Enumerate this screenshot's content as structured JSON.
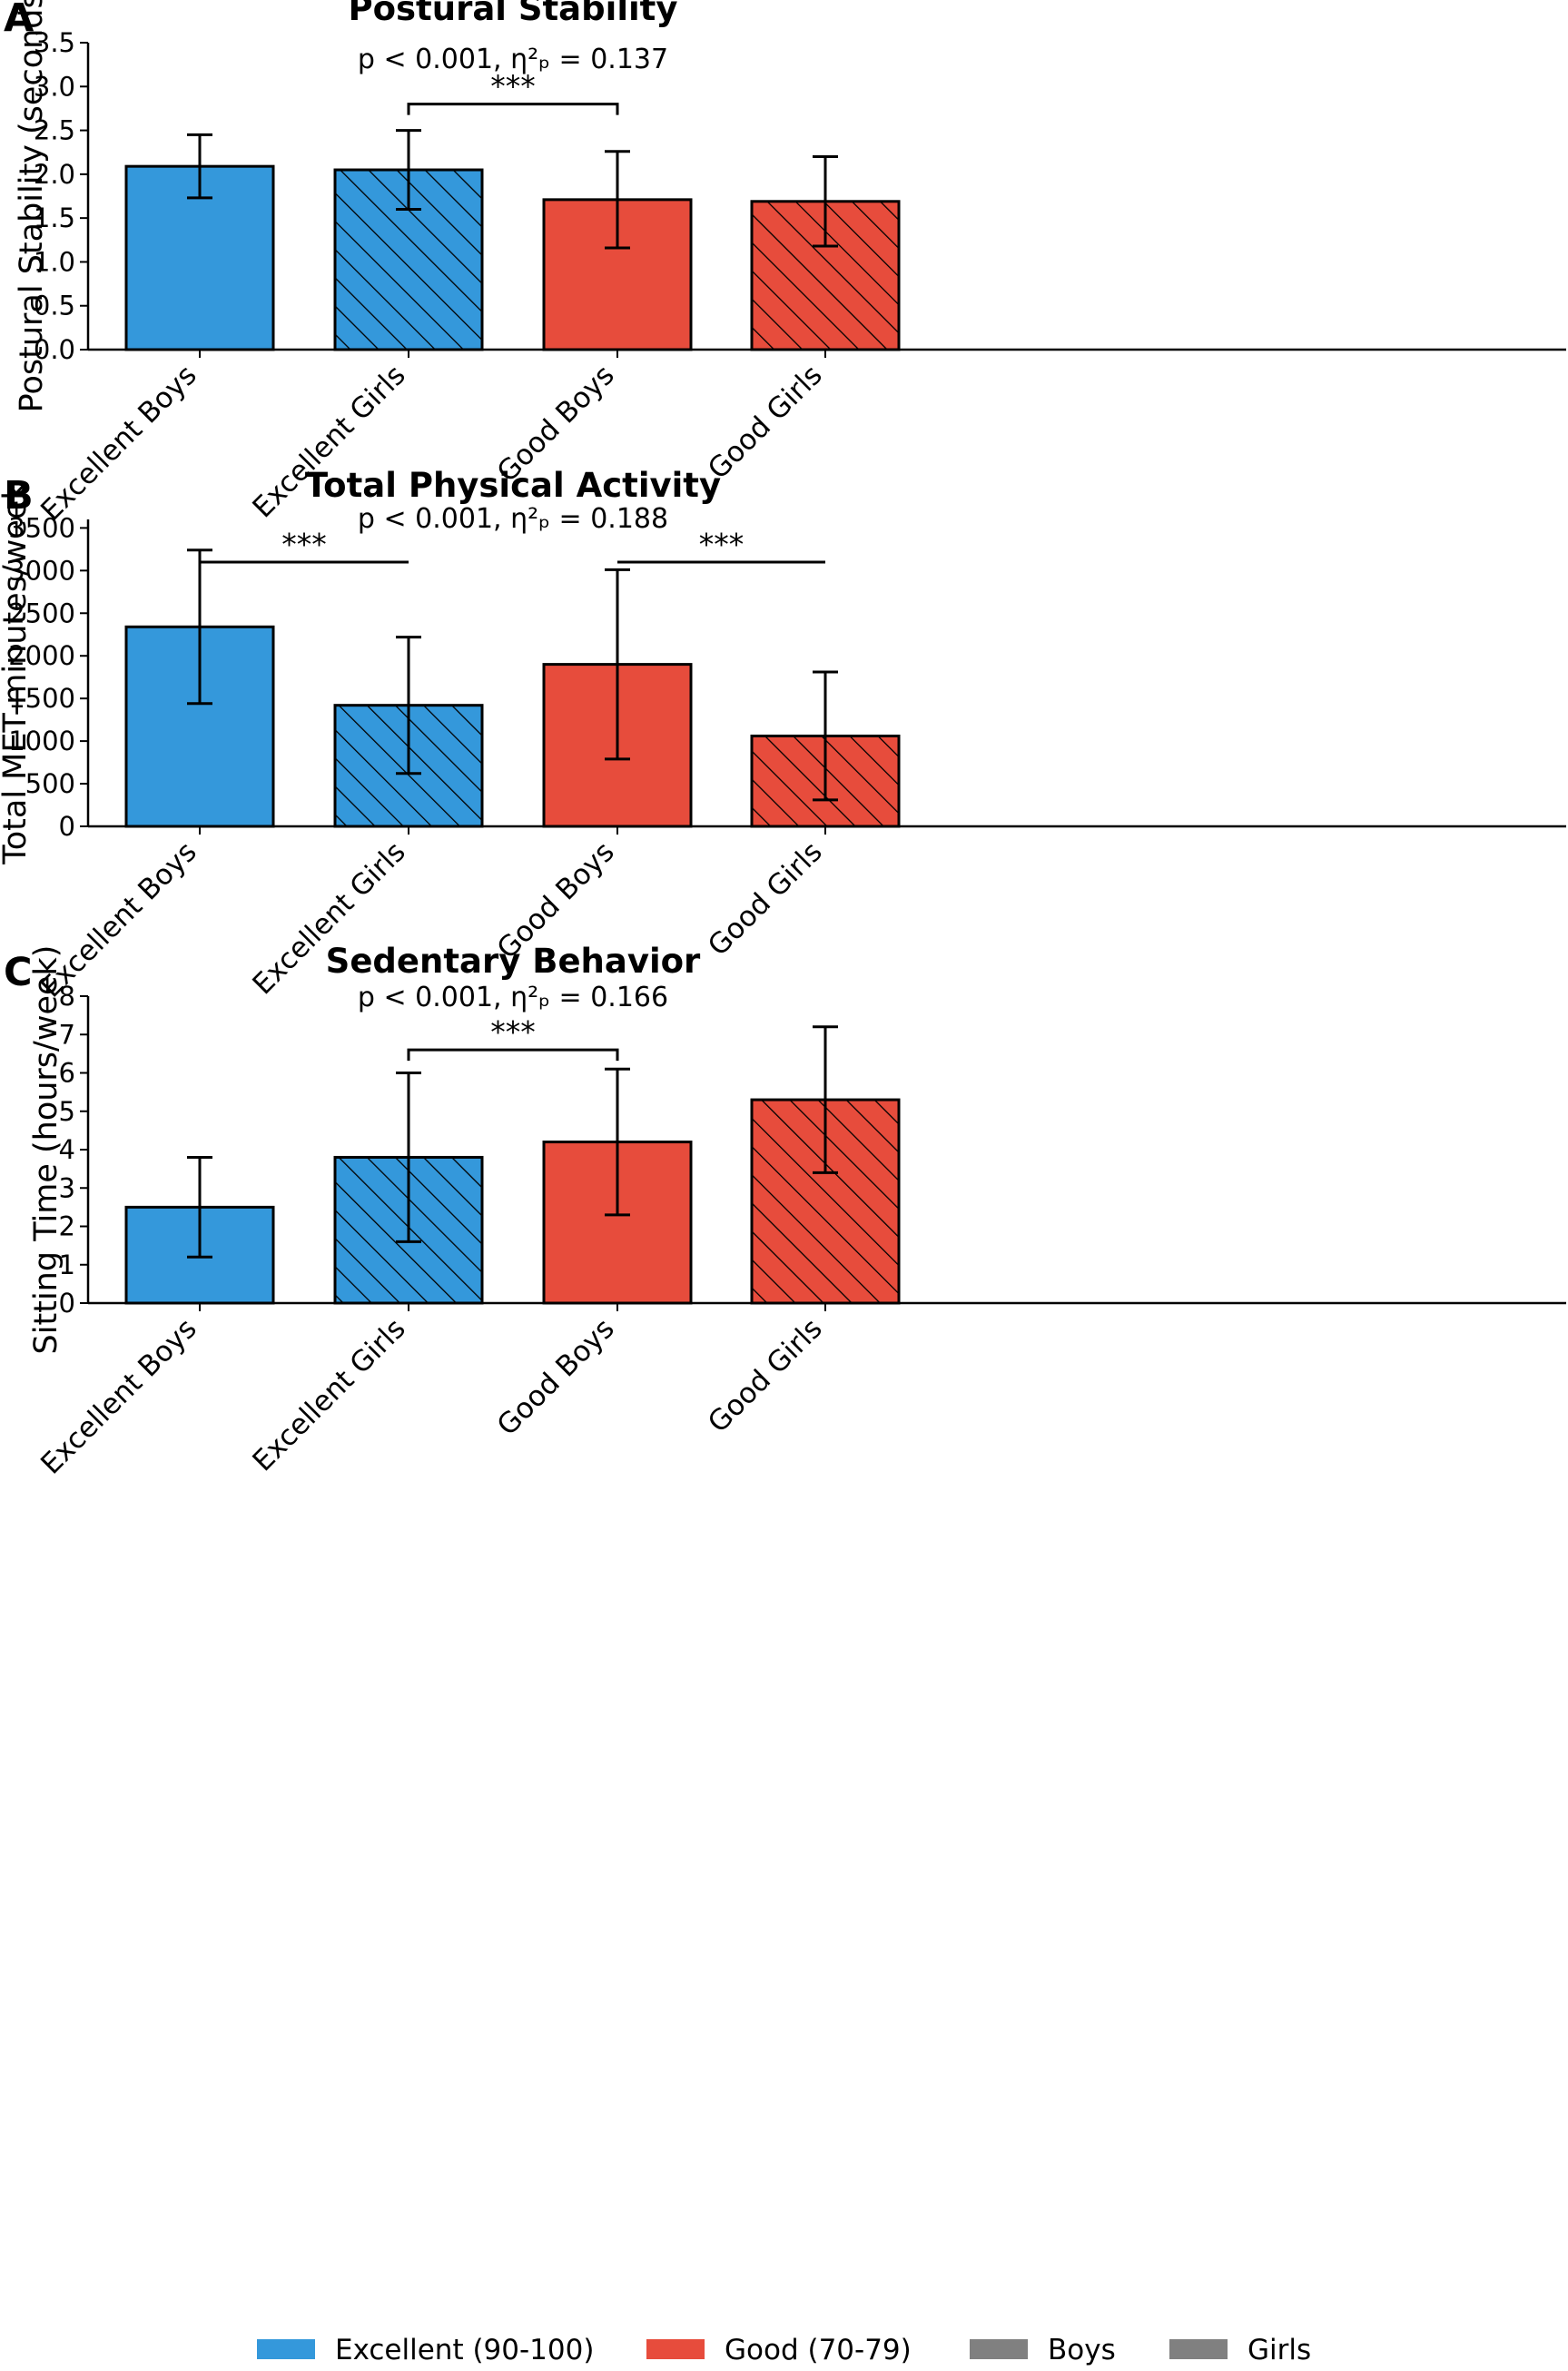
{
  "colors": {
    "excellent": "#3498db",
    "good": "#e74c3c",
    "neutral": "#808080",
    "edge": "#000000"
  },
  "chart_data": [
    {
      "type": "bar",
      "panel": "A",
      "title": "Postural Stability",
      "xlabel": "",
      "ylabel": "Postural Stability (seconds)",
      "ylim": [
        0,
        3.5
      ],
      "yticks": [
        0.0,
        0.5,
        1.0,
        1.5,
        2.0,
        2.5,
        3.0,
        3.5
      ],
      "ytick_labels": [
        "0.0",
        "0.5",
        "1.0",
        "1.5",
        "2.0",
        "2.5",
        "3.0",
        "3.5"
      ],
      "categories": [
        "Excellent Boys",
        "Excellent Girls",
        "Good Boys",
        "Good Girls"
      ],
      "values": [
        2.09,
        2.05,
        1.71,
        1.69
      ],
      "errors": [
        0.36,
        0.45,
        0.55,
        0.51
      ],
      "stat_text": "p < 0.001, η²ₚ = 0.137",
      "brackets": [
        {
          "from": 1,
          "to": 2,
          "y": 2.8,
          "label": "***",
          "style": "bracket"
        }
      ]
    },
    {
      "type": "bar",
      "panel": "B",
      "title": "Total Physical Activity",
      "xlabel": "",
      "ylabel": "Total MET-minutes/week",
      "ylim": [
        0,
        3600
      ],
      "yticks": [
        0,
        500,
        1000,
        1500,
        2000,
        2500,
        3000,
        3500
      ],
      "ytick_labels": [
        "0",
        "500",
        "1000",
        "1500",
        "2000",
        "2500",
        "3000",
        "3500"
      ],
      "categories": [
        "Excellent Boys",
        "Excellent Girls",
        "Good Boys",
        "Good Girls"
      ],
      "values": [
        2340,
        1420,
        1900,
        1060
      ],
      "errors": [
        900,
        800,
        1110,
        750
      ],
      "stat_text": "p < 0.001, η²ₚ = 0.188",
      "brackets": [
        {
          "from": 0,
          "to": 1,
          "y": 3100,
          "label": "***",
          "style": "line"
        },
        {
          "from": 2,
          "to": 3,
          "y": 3100,
          "label": "***",
          "style": "line"
        }
      ]
    },
    {
      "type": "bar",
      "panel": "C",
      "title": "Sedentary Behavior",
      "xlabel": "",
      "ylabel": "Sitting Time (hours/week)",
      "ylim": [
        0,
        8
      ],
      "yticks": [
        0,
        1,
        2,
        3,
        4,
        5,
        6,
        7,
        8
      ],
      "ytick_labels": [
        "0",
        "1",
        "2",
        "3",
        "4",
        "5",
        "6",
        "7",
        "8"
      ],
      "categories": [
        "Excellent Boys",
        "Excellent Girls",
        "Good Boys",
        "Good Girls"
      ],
      "values": [
        2.5,
        3.8,
        4.2,
        5.3
      ],
      "errors": [
        1.3,
        2.2,
        1.9,
        1.9
      ],
      "stat_text": "p < 0.001, η²ₚ = 0.166",
      "brackets": [
        {
          "from": 1,
          "to": 2,
          "y": 6.6,
          "label": "***",
          "style": "bracket"
        }
      ]
    }
  ],
  "legend": [
    {
      "label": "Excellent (90-100)",
      "color": "#3498db"
    },
    {
      "label": "Good (70-79)",
      "color": "#e74c3c"
    },
    {
      "label": "Boys",
      "color": "#808080"
    },
    {
      "label": "Girls",
      "color": "#808080"
    }
  ]
}
